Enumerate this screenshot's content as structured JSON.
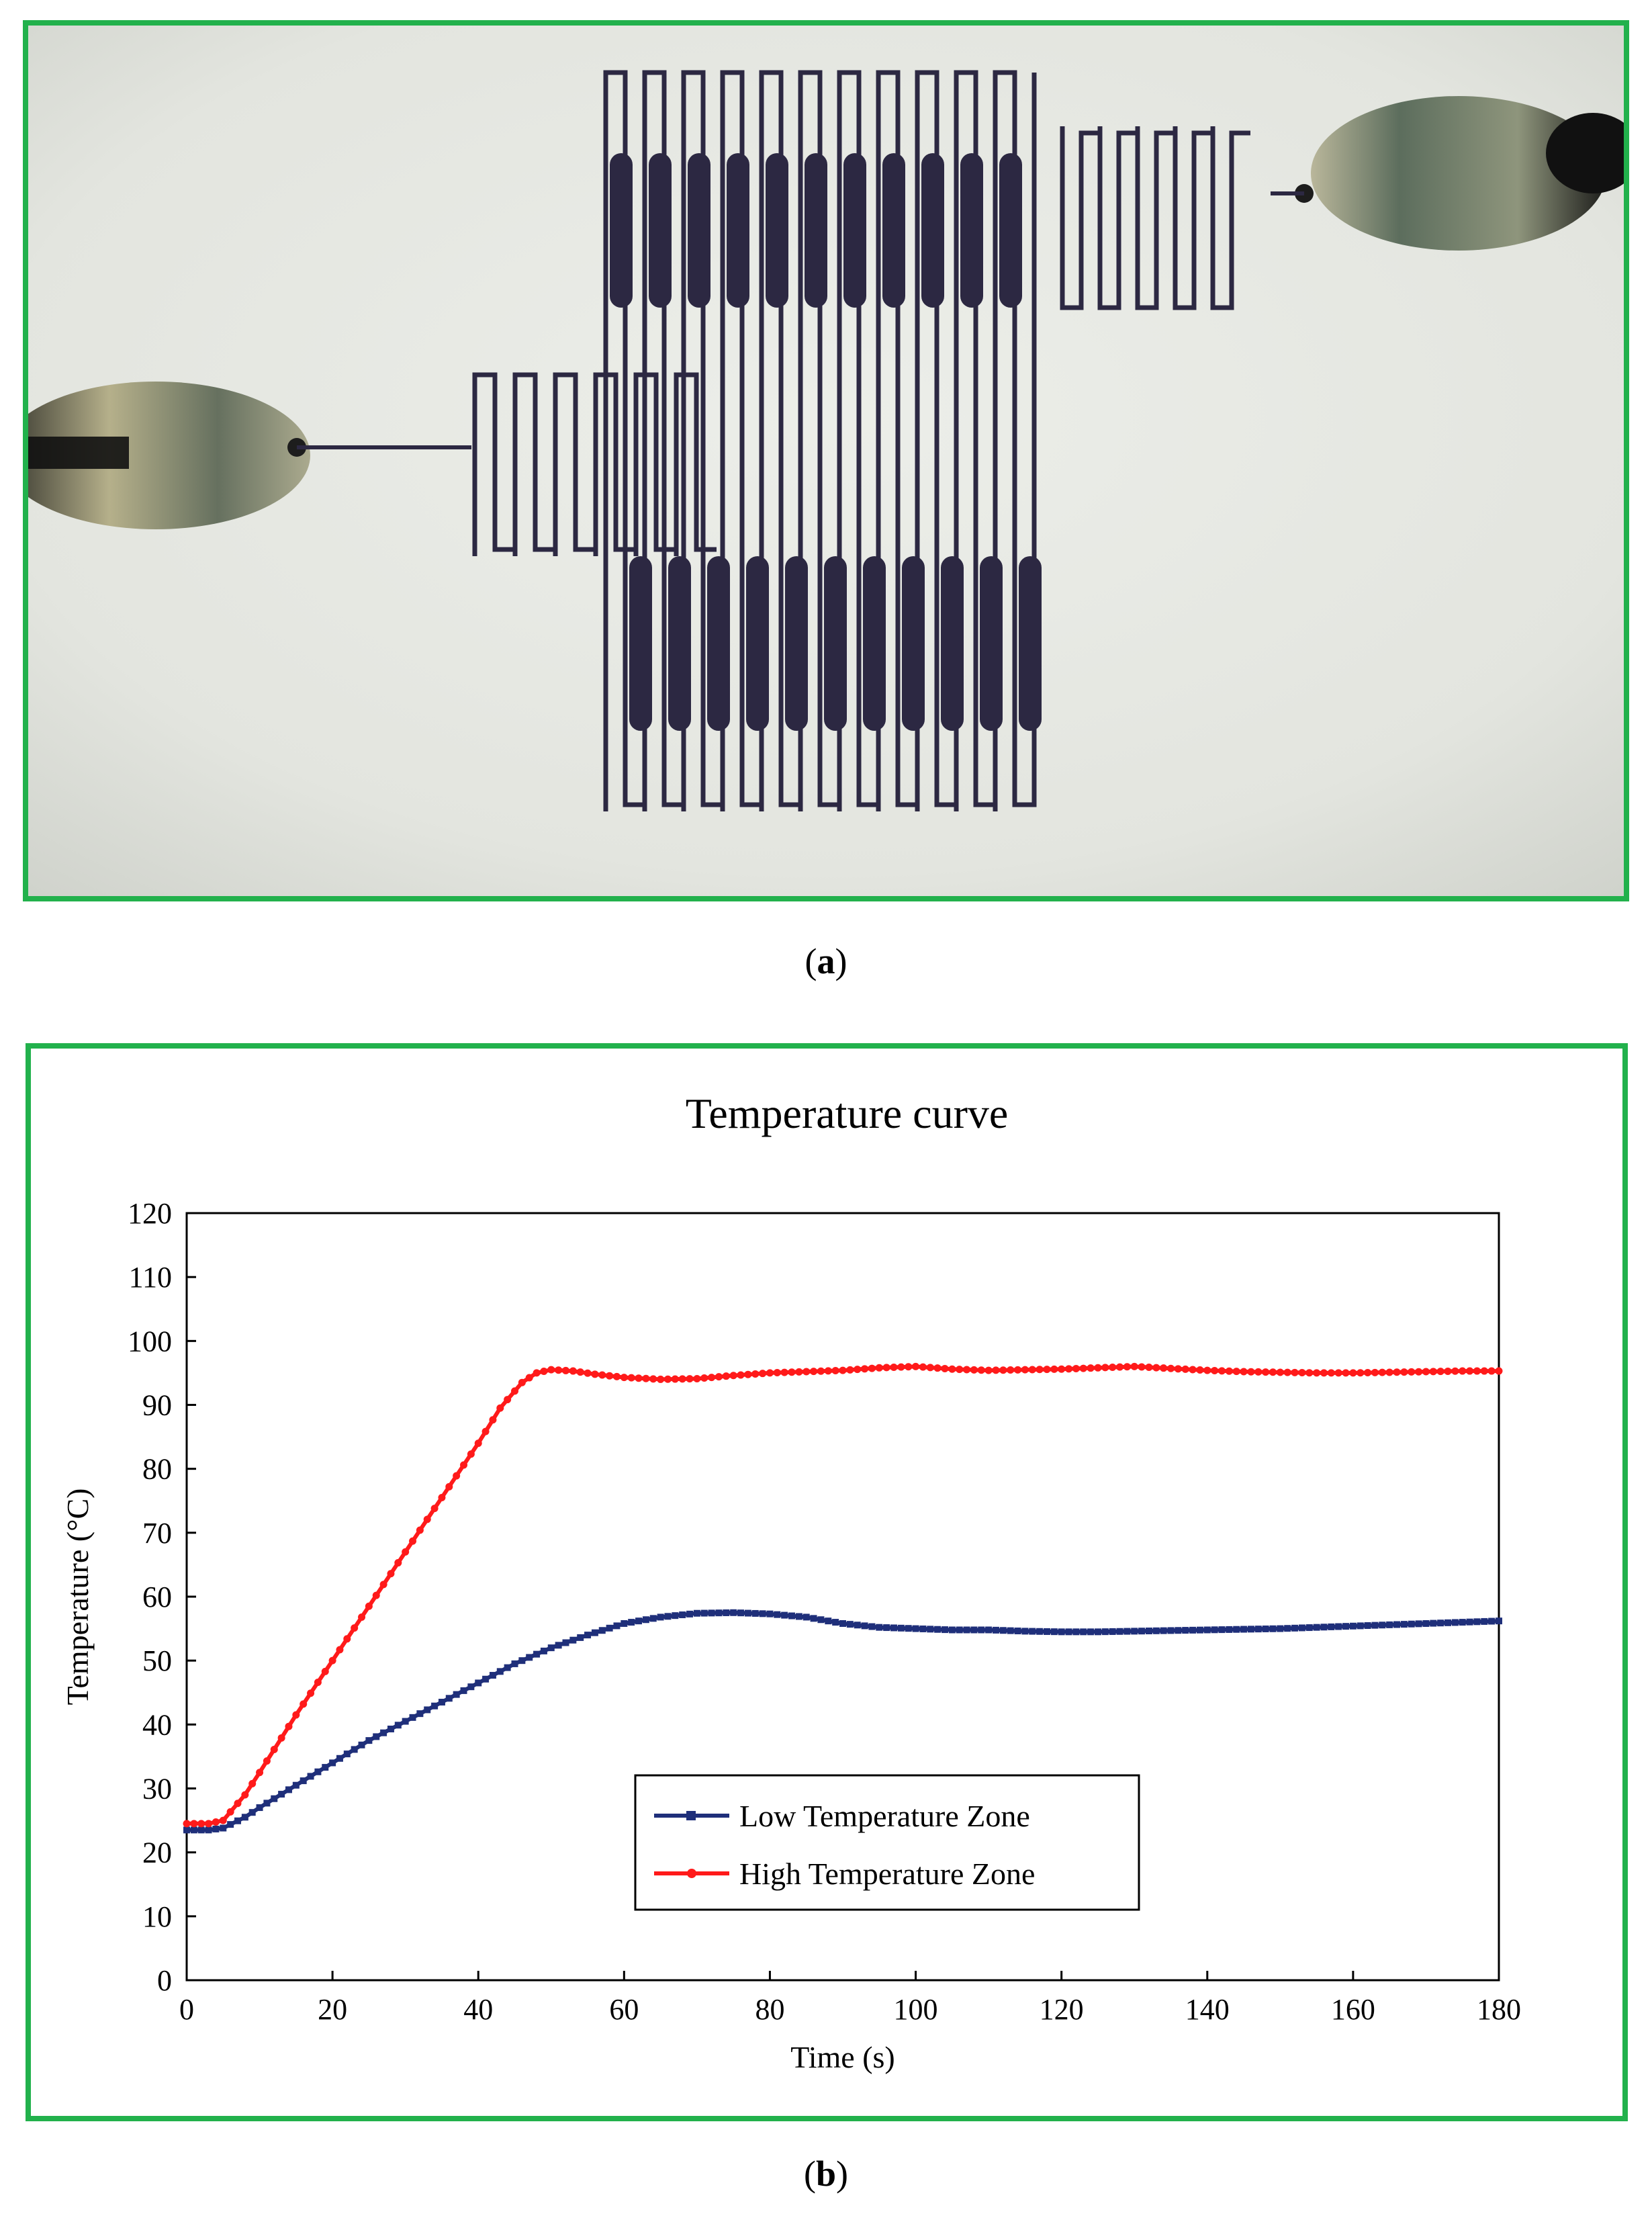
{
  "captions": {
    "a": {
      "open": "(",
      "letter": "a",
      "close": ")"
    },
    "b": {
      "open": "(",
      "letter": "b",
      "close": ")"
    }
  },
  "photo": {
    "description_icon": "printed-serpentine-heater-photo",
    "colors": {
      "background": "#e4e6e0",
      "trace": "#2c2842",
      "clip": "#9e9a78"
    }
  },
  "chart_data": {
    "type": "line",
    "title": "Temperature curve",
    "xlabel": "Time (s)",
    "ylabel": "Temperature (°C)",
    "xlim": [
      0,
      180
    ],
    "ylim": [
      0,
      120
    ],
    "xticks": [
      0,
      20,
      40,
      60,
      80,
      100,
      120,
      140,
      160,
      180
    ],
    "yticks": [
      0,
      10,
      20,
      30,
      40,
      50,
      60,
      70,
      80,
      90,
      100,
      110,
      120
    ],
    "grid": false,
    "legend_position": "bottom-center",
    "series": [
      {
        "name": "Low Temperature Zone",
        "color": "#1f2f7a",
        "marker": "square",
        "points": [
          [
            0,
            23.5
          ],
          [
            3,
            23.5
          ],
          [
            5,
            23.8
          ],
          [
            8,
            25.5
          ],
          [
            10,
            27
          ],
          [
            15,
            30.5
          ],
          [
            20,
            34
          ],
          [
            25,
            37.5
          ],
          [
            30,
            40.5
          ],
          [
            35,
            43.5
          ],
          [
            40,
            46.5
          ],
          [
            45,
            49.5
          ],
          [
            50,
            52
          ],
          [
            55,
            54
          ],
          [
            60,
            55.8
          ],
          [
            65,
            56.8
          ],
          [
            70,
            57.4
          ],
          [
            75,
            57.5
          ],
          [
            80,
            57.3
          ],
          [
            85,
            56.8
          ],
          [
            90,
            55.8
          ],
          [
            95,
            55.2
          ],
          [
            100,
            55
          ],
          [
            105,
            54.8
          ],
          [
            110,
            54.8
          ],
          [
            115,
            54.6
          ],
          [
            120,
            54.5
          ],
          [
            125,
            54.5
          ],
          [
            130,
            54.6
          ],
          [
            135,
            54.7
          ],
          [
            140,
            54.8
          ],
          [
            145,
            54.9
          ],
          [
            150,
            55
          ],
          [
            155,
            55.2
          ],
          [
            160,
            55.4
          ],
          [
            165,
            55.6
          ],
          [
            170,
            55.8
          ],
          [
            175,
            56
          ],
          [
            180,
            56.2
          ]
        ]
      },
      {
        "name": "High Temperature Zone",
        "color": "#ff1a1a",
        "marker": "circle",
        "points": [
          [
            0,
            24.5
          ],
          [
            3,
            24.5
          ],
          [
            5,
            25
          ],
          [
            8,
            29
          ],
          [
            10,
            32.5
          ],
          [
            15,
            41.5
          ],
          [
            20,
            50
          ],
          [
            25,
            58.5
          ],
          [
            30,
            67
          ],
          [
            35,
            75.5
          ],
          [
            40,
            84
          ],
          [
            43,
            89.5
          ],
          [
            46,
            93.5
          ],
          [
            48,
            95
          ],
          [
            50,
            95.5
          ],
          [
            53,
            95.3
          ],
          [
            56,
            94.8
          ],
          [
            60,
            94.3
          ],
          [
            65,
            94
          ],
          [
            70,
            94.1
          ],
          [
            75,
            94.6
          ],
          [
            80,
            95
          ],
          [
            85,
            95.2
          ],
          [
            90,
            95.4
          ],
          [
            95,
            95.8
          ],
          [
            100,
            96
          ],
          [
            105,
            95.6
          ],
          [
            110,
            95.4
          ],
          [
            115,
            95.5
          ],
          [
            120,
            95.6
          ],
          [
            125,
            95.8
          ],
          [
            130,
            96
          ],
          [
            135,
            95.7
          ],
          [
            140,
            95.4
          ],
          [
            145,
            95.2
          ],
          [
            150,
            95.1
          ],
          [
            155,
            95
          ],
          [
            160,
            95
          ],
          [
            165,
            95.1
          ],
          [
            170,
            95.2
          ],
          [
            175,
            95.3
          ],
          [
            180,
            95.3
          ]
        ]
      }
    ]
  }
}
